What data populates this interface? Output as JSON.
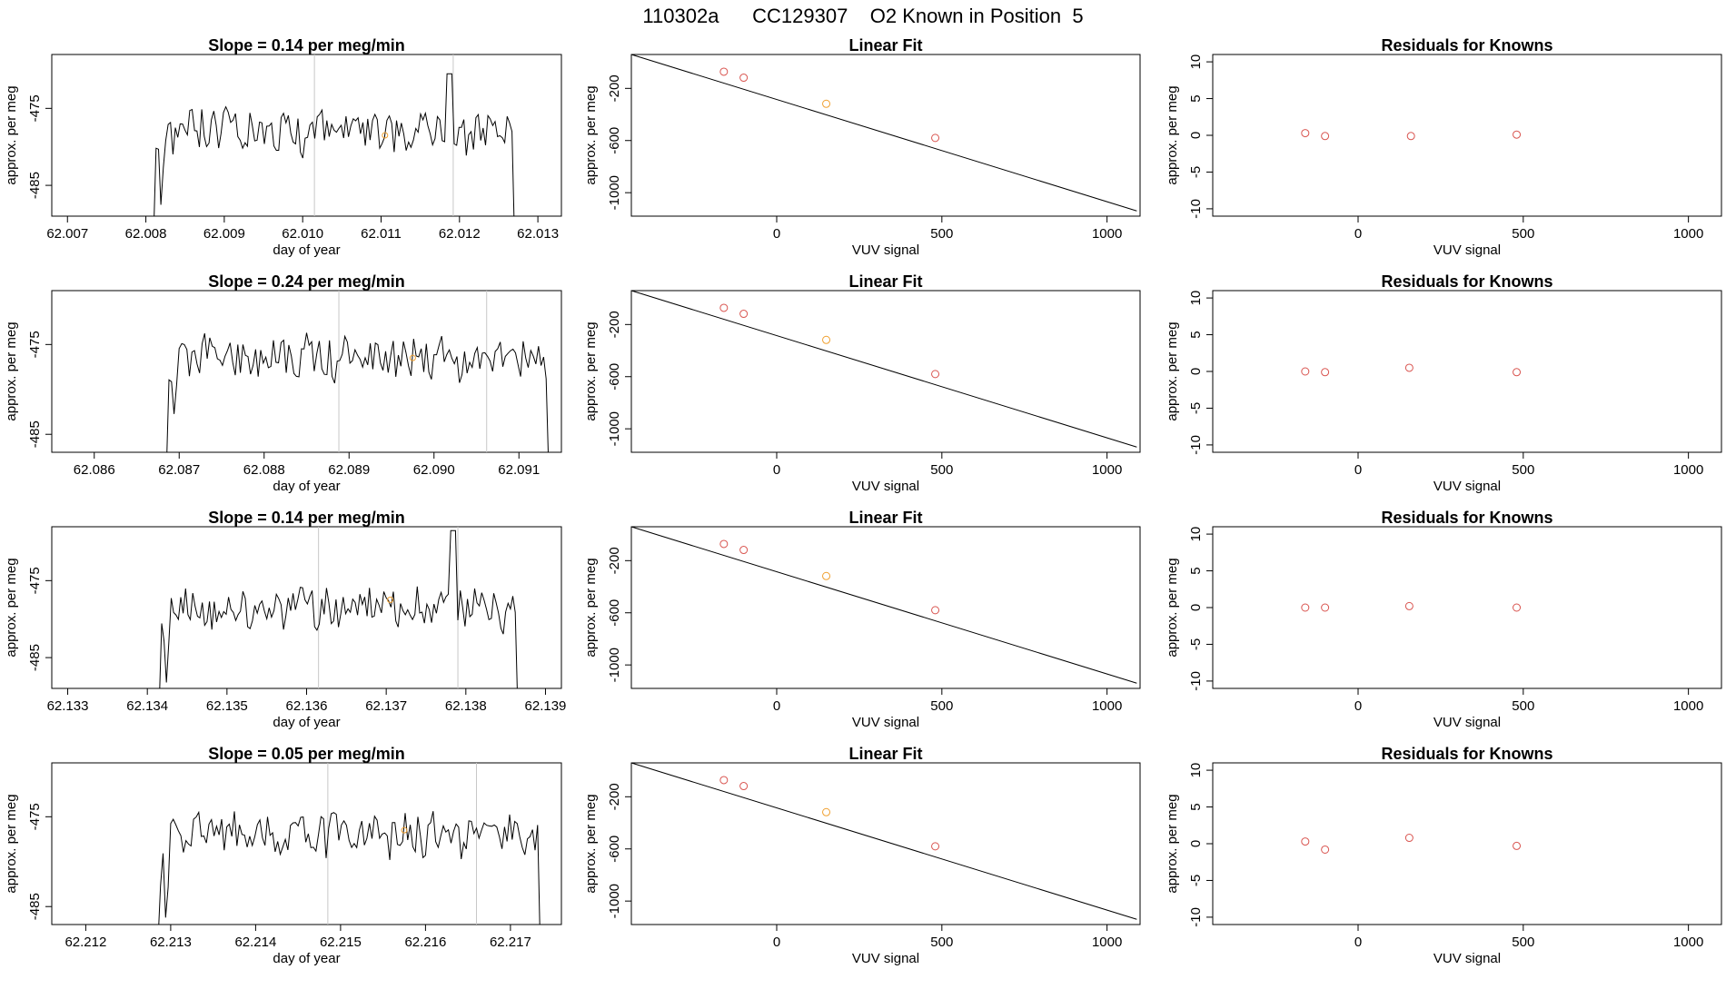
{
  "title": "110302a      CC129307    O2 Known in Position  5",
  "colors": {
    "line": "#000000",
    "grid_vline": "#c8c8c8",
    "point_red": "#d9544f",
    "point_orange": "#f0a030"
  },
  "rows": [
    {
      "timeseries": {
        "title": "Slope =  0.14  per meg/min",
        "xlabel": "day of year",
        "ylabel": "approx. per meg",
        "xlim": [
          62.0068,
          62.0133
        ],
        "ylim": [
          -489,
          -468
        ],
        "xticks": [
          62.007,
          62.008,
          62.009,
          62.01,
          62.011,
          62.012,
          62.013
        ],
        "xtick_labels": [
          "62.007",
          "62.008",
          "62.009",
          "62.010",
          "62.011",
          "62.012",
          "62.013"
        ],
        "yticks": [
          -475,
          -485
        ],
        "ytick_labels": [
          "-475",
          "-485"
        ],
        "x_start": 62.0081,
        "x_end": 62.0127,
        "vlines": [
          62.01015,
          62.01192
        ],
        "marker": [
          62.01105,
          -478.5
        ],
        "seed": 11,
        "series": {
          "baseline": -478,
          "amp": 2.6,
          "spike_at": 0.82,
          "spike_value": -470.5
        }
      },
      "fit": {
        "title": "Linear Fit",
        "xlabel": "VUV signal",
        "ylabel": "approx. per meg",
        "xlim": [
          -440,
          1100
        ],
        "ylim": [
          -1180,
          60
        ],
        "xticks": [
          0,
          500,
          1000
        ],
        "xtick_labels": [
          "0",
          "500",
          "1000"
        ],
        "yticks": [
          -200,
          -600,
          -1000
        ],
        "ytick_labels": [
          "-200",
          "-600",
          "-1000"
        ],
        "line": [
          [
            -440,
            60
          ],
          [
            1090,
            -1140
          ]
        ],
        "points": [
          [
            -160,
            -72,
            "red"
          ],
          [
            -100,
            -118,
            "red"
          ],
          [
            150,
            -318,
            "orange"
          ],
          [
            480,
            -580,
            "red"
          ]
        ]
      },
      "resid": {
        "title": "Residuals for Knowns",
        "xlabel": "VUV signal",
        "ylabel": "approx. per meg",
        "xlim": [
          -440,
          1100
        ],
        "ylim": [
          -11,
          11
        ],
        "xticks": [
          0,
          500,
          1000
        ],
        "xtick_labels": [
          "0",
          "500",
          "1000"
        ],
        "yticks": [
          10,
          5,
          0,
          -5,
          -10
        ],
        "ytick_labels": [
          "10",
          "5",
          "0",
          "-5",
          "-10"
        ],
        "points": [
          [
            -160,
            0.3
          ],
          [
            -100,
            -0.1
          ],
          [
            160,
            -0.1
          ],
          [
            480,
            0.1
          ]
        ]
      }
    },
    {
      "timeseries": {
        "title": "Slope =  0.24  per meg/min",
        "xlabel": "day of year",
        "ylabel": "approx. per meg",
        "xlim": [
          62.0855,
          62.0915
        ],
        "ylim": [
          -487,
          -469
        ],
        "xticks": [
          62.086,
          62.087,
          62.088,
          62.089,
          62.09,
          62.091
        ],
        "xtick_labels": [
          "62.086",
          "62.087",
          "62.088",
          "62.089",
          "62.090",
          "62.091"
        ],
        "yticks": [
          -475,
          -485
        ],
        "ytick_labels": [
          "-475",
          "-485"
        ],
        "x_start": 62.08685,
        "x_end": 62.09135,
        "vlines": [
          62.08888,
          62.09062
        ],
        "marker": [
          62.08975,
          -476.5
        ],
        "seed": 23,
        "series": {
          "baseline": -476.5,
          "amp": 2.2,
          "spike_at": -1,
          "spike_value": 0
        }
      },
      "fit": {
        "title": "Linear Fit",
        "xlabel": "VUV signal",
        "ylabel": "approx. per meg",
        "xlim": [
          -440,
          1100
        ],
        "ylim": [
          -1180,
          60
        ],
        "xticks": [
          0,
          500,
          1000
        ],
        "xtick_labels": [
          "0",
          "500",
          "1000"
        ],
        "yticks": [
          -200,
          -600,
          -1000
        ],
        "ytick_labels": [
          "-200",
          "-600",
          "-1000"
        ],
        "line": [
          [
            -440,
            60
          ],
          [
            1090,
            -1140
          ]
        ],
        "points": [
          [
            -160,
            -72,
            "red"
          ],
          [
            -100,
            -118,
            "red"
          ],
          [
            150,
            -318,
            "orange"
          ],
          [
            480,
            -580,
            "red"
          ]
        ]
      },
      "resid": {
        "title": "Residuals for Knowns",
        "xlabel": "VUV signal",
        "ylabel": "approx. per meg",
        "xlim": [
          -440,
          1100
        ],
        "ylim": [
          -11,
          11
        ],
        "xticks": [
          0,
          500,
          1000
        ],
        "xtick_labels": [
          "0",
          "500",
          "1000"
        ],
        "yticks": [
          10,
          5,
          0,
          -5,
          -10
        ],
        "ytick_labels": [
          "10",
          "5",
          "0",
          "-5",
          "-10"
        ],
        "points": [
          [
            -160,
            0.0
          ],
          [
            -100,
            -0.1
          ],
          [
            155,
            0.5
          ],
          [
            480,
            -0.1
          ]
        ]
      }
    },
    {
      "timeseries": {
        "title": "Slope =  0.14  per meg/min",
        "xlabel": "day of year",
        "ylabel": "approx. per meg",
        "xlim": [
          62.1328,
          62.1392
        ],
        "ylim": [
          -489,
          -468
        ],
        "xticks": [
          62.133,
          62.134,
          62.135,
          62.136,
          62.137,
          62.138,
          62.139
        ],
        "xtick_labels": [
          "62.133",
          "62.134",
          "62.135",
          "62.136",
          "62.137",
          "62.138",
          "62.139"
        ],
        "yticks": [
          -475,
          -485
        ],
        "ytick_labels": [
          "-475",
          "-485"
        ],
        "x_start": 62.13415,
        "x_end": 62.13865,
        "vlines": [
          62.13615,
          62.1379
        ],
        "marker": [
          62.13705,
          -477.5
        ],
        "seed": 37,
        "series": {
          "baseline": -478.5,
          "amp": 2.4,
          "spike_at": 0.82,
          "spike_value": -468.5
        }
      },
      "fit": {
        "title": "Linear Fit",
        "xlabel": "VUV signal",
        "ylabel": "approx. per meg",
        "xlim": [
          -440,
          1100
        ],
        "ylim": [
          -1180,
          60
        ],
        "xticks": [
          0,
          500,
          1000
        ],
        "xtick_labels": [
          "0",
          "500",
          "1000"
        ],
        "yticks": [
          -200,
          -600,
          -1000
        ],
        "ytick_labels": [
          "-200",
          "-600",
          "-1000"
        ],
        "line": [
          [
            -440,
            60
          ],
          [
            1090,
            -1140
          ]
        ],
        "points": [
          [
            -160,
            -72,
            "red"
          ],
          [
            -100,
            -118,
            "red"
          ],
          [
            150,
            -318,
            "orange"
          ],
          [
            480,
            -580,
            "red"
          ]
        ]
      },
      "resid": {
        "title": "Residuals for Knowns",
        "xlabel": "VUV signal",
        "ylabel": "approx. per meg",
        "xlim": [
          -440,
          1100
        ],
        "ylim": [
          -11,
          11
        ],
        "xticks": [
          0,
          500,
          1000
        ],
        "xtick_labels": [
          "0",
          "500",
          "1000"
        ],
        "yticks": [
          10,
          5,
          0,
          -5,
          -10
        ],
        "ytick_labels": [
          "10",
          "5",
          "0",
          "-5",
          "-10"
        ],
        "points": [
          [
            -160,
            0.0
          ],
          [
            -100,
            0.0
          ],
          [
            155,
            0.2
          ],
          [
            480,
            0.0
          ]
        ]
      }
    },
    {
      "timeseries": {
        "title": "Slope =  0.05  per meg/min",
        "xlabel": "day of year",
        "ylabel": "approx. per meg",
        "xlim": [
          62.2116,
          62.2176
        ],
        "ylim": [
          -487,
          -469
        ],
        "xticks": [
          62.212,
          62.213,
          62.214,
          62.215,
          62.216,
          62.217
        ],
        "xtick_labels": [
          "62.212",
          "62.213",
          "62.214",
          "62.215",
          "62.216",
          "62.217"
        ],
        "yticks": [
          -475,
          -485
        ],
        "ytick_labels": [
          "-475",
          "-485"
        ],
        "x_start": 62.21285,
        "x_end": 62.21735,
        "vlines": [
          62.21485,
          62.2166
        ],
        "marker": [
          62.21575,
          -476.5
        ],
        "seed": 51,
        "series": {
          "baseline": -477,
          "amp": 2.1,
          "spike_at": -1,
          "spike_value": 0
        }
      },
      "fit": {
        "title": "Linear Fit",
        "xlabel": "VUV signal",
        "ylabel": "approx. per meg",
        "xlim": [
          -440,
          1100
        ],
        "ylim": [
          -1180,
          60
        ],
        "xticks": [
          0,
          500,
          1000
        ],
        "xtick_labels": [
          "0",
          "500",
          "1000"
        ],
        "yticks": [
          -200,
          -600,
          -1000
        ],
        "ytick_labels": [
          "-200",
          "-600",
          "-1000"
        ],
        "line": [
          [
            -440,
            60
          ],
          [
            1090,
            -1140
          ]
        ],
        "points": [
          [
            -160,
            -72,
            "red"
          ],
          [
            -100,
            -118,
            "red"
          ],
          [
            150,
            -318,
            "orange"
          ],
          [
            480,
            -580,
            "red"
          ]
        ]
      },
      "resid": {
        "title": "Residuals for Knowns",
        "xlabel": "VUV signal",
        "ylabel": "approx. per meg",
        "xlim": [
          -440,
          1100
        ],
        "ylim": [
          -11,
          11
        ],
        "xticks": [
          0,
          500,
          1000
        ],
        "xtick_labels": [
          "0",
          "500",
          "1000"
        ],
        "yticks": [
          10,
          5,
          0,
          -5,
          -10
        ],
        "ytick_labels": [
          "10",
          "5",
          "0",
          "-5",
          "-10"
        ],
        "points": [
          [
            -160,
            0.3
          ],
          [
            -100,
            -0.8
          ],
          [
            155,
            0.8
          ],
          [
            480,
            -0.3
          ]
        ]
      }
    }
  ],
  "chart_data": [
    {
      "type": "line",
      "title": "Slope =  0.14  per meg/min",
      "xlabel": "day of year",
      "ylabel": "approx. per meg",
      "xlim": [
        62.0068,
        62.0133
      ],
      "ylim": [
        -489,
        -468
      ]
    },
    {
      "type": "scatter",
      "title": "Linear Fit",
      "xlabel": "VUV signal",
      "ylabel": "approx. per meg",
      "x": [
        -160,
        -100,
        150,
        480
      ],
      "y": [
        -72,
        -118,
        -318,
        -580
      ],
      "xlim": [
        -440,
        1100
      ],
      "ylim": [
        -1180,
        60
      ]
    },
    {
      "type": "scatter",
      "title": "Residuals for Knowns",
      "xlabel": "VUV signal",
      "ylabel": "approx. per meg",
      "x": [
        -160,
        -100,
        160,
        480
      ],
      "y": [
        0.3,
        -0.1,
        -0.1,
        0.1
      ],
      "xlim": [
        -440,
        1100
      ],
      "ylim": [
        -11,
        11
      ]
    },
    {
      "type": "line",
      "title": "Slope =  0.24  per meg/min",
      "xlabel": "day of year",
      "ylabel": "approx. per meg",
      "xlim": [
        62.0855,
        62.0915
      ],
      "ylim": [
        -487,
        -469
      ]
    },
    {
      "type": "scatter",
      "title": "Linear Fit",
      "xlabel": "VUV signal",
      "ylabel": "approx. per meg",
      "x": [
        -160,
        -100,
        150,
        480
      ],
      "y": [
        -72,
        -118,
        -318,
        -580
      ],
      "xlim": [
        -440,
        1100
      ],
      "ylim": [
        -1180,
        60
      ]
    },
    {
      "type": "scatter",
      "title": "Residuals for Knowns",
      "xlabel": "VUV signal",
      "ylabel": "approx. per meg",
      "x": [
        -160,
        -100,
        155,
        480
      ],
      "y": [
        0.0,
        -0.1,
        0.5,
        -0.1
      ],
      "xlim": [
        -440,
        1100
      ],
      "ylim": [
        -11,
        11
      ]
    },
    {
      "type": "line",
      "title": "Slope =  0.14  per meg/min",
      "xlabel": "day of year",
      "ylabel": "approx. per meg",
      "xlim": [
        62.1328,
        62.1392
      ],
      "ylim": [
        -489,
        -468
      ]
    },
    {
      "type": "scatter",
      "title": "Linear Fit",
      "xlabel": "VUV signal",
      "ylabel": "approx. per meg",
      "x": [
        -160,
        -100,
        150,
        480
      ],
      "y": [
        -72,
        -118,
        -318,
        -580
      ],
      "xlim": [
        -440,
        1100
      ],
      "ylim": [
        -1180,
        60
      ]
    },
    {
      "type": "scatter",
      "title": "Residuals for Knowns",
      "xlabel": "VUV signal",
      "ylabel": "approx. per meg",
      "x": [
        -160,
        -100,
        155,
        480
      ],
      "y": [
        0.0,
        0.0,
        0.2,
        0.0
      ],
      "xlim": [
        -440,
        1100
      ],
      "ylim": [
        -11,
        11
      ]
    },
    {
      "type": "line",
      "title": "Slope =  0.05  per meg/min",
      "xlabel": "day of year",
      "ylabel": "approx. per meg",
      "xlim": [
        62.2116,
        62.2176
      ],
      "ylim": [
        -487,
        -469
      ]
    },
    {
      "type": "scatter",
      "title": "Linear Fit",
      "xlabel": "VUV signal",
      "ylabel": "approx. per meg",
      "x": [
        -160,
        -100,
        150,
        480
      ],
      "y": [
        -72,
        -118,
        -318,
        -580
      ],
      "xlim": [
        -440,
        1100
      ],
      "ylim": [
        -1180,
        60
      ]
    },
    {
      "type": "scatter",
      "title": "Residuals for Knowns",
      "xlabel": "VUV signal",
      "ylabel": "approx. per meg",
      "x": [
        -160,
        -100,
        155,
        480
      ],
      "y": [
        0.3,
        -0.8,
        0.8,
        -0.3
      ],
      "xlim": [
        -440,
        1100
      ],
      "ylim": [
        -11,
        11
      ]
    }
  ]
}
